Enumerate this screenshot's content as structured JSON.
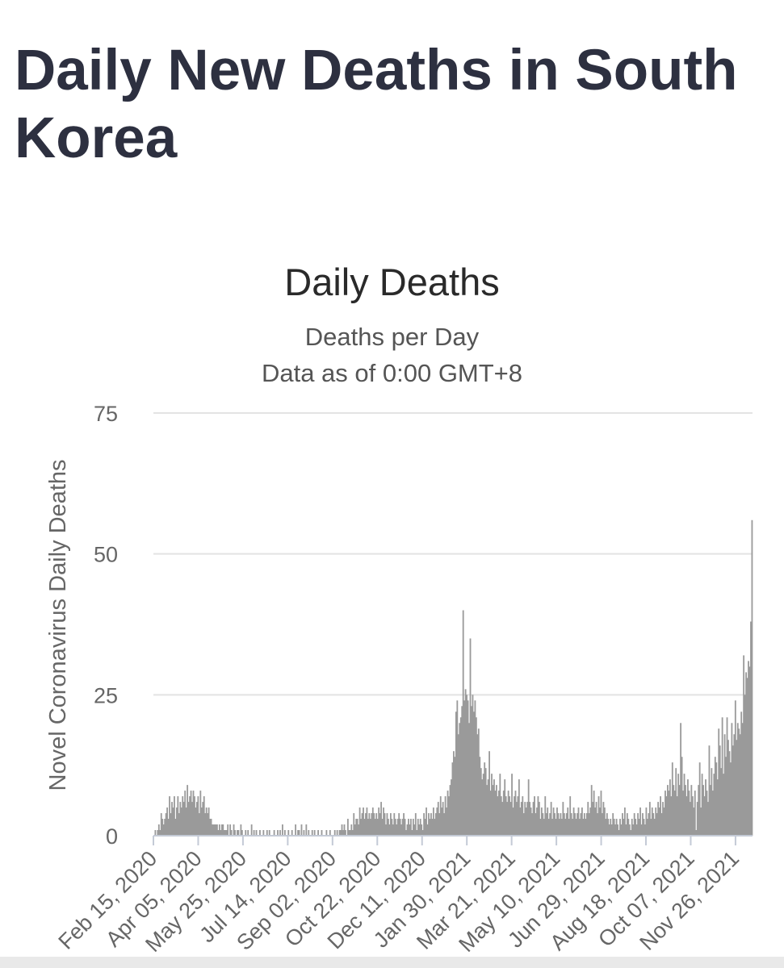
{
  "page": {
    "title": "Daily New Deaths in South Korea"
  },
  "chart_data": {
    "type": "bar",
    "title": "Daily Deaths",
    "subtitles": [
      "Deaths per Day",
      "Data as of 0:00 GMT+8"
    ],
    "ylabel": "Novel Coronavirus Daily Deaths",
    "xlabel": "",
    "ylim": [
      0,
      75
    ],
    "yticks": [
      0,
      25,
      50,
      75
    ],
    "x_range": [
      "2020-02-15",
      "2021-12-14"
    ],
    "xtick_dates": [
      "2020-02-15",
      "2020-04-05",
      "2020-05-25",
      "2020-07-14",
      "2020-09-02",
      "2020-10-22",
      "2020-12-11",
      "2021-01-30",
      "2021-03-21",
      "2021-05-10",
      "2021-06-29",
      "2021-08-18",
      "2021-10-07",
      "2021-11-26"
    ],
    "xtick_labels": [
      "Feb 15, 2020",
      "Apr 05, 2020",
      "May 25, 2020",
      "Jul 14, 2020",
      "Sep 02, 2020",
      "Oct 22, 2020",
      "Dec 11, 2020",
      "Jan 30, 2021",
      "Mar 21, 2021",
      "May 10, 2021",
      "Jun 29, 2021",
      "Aug 18, 2021",
      "Oct 07, 2021",
      "Nov 26, 2021"
    ],
    "grid": true,
    "bar_color": "#9a9a9a",
    "series": [
      {
        "values": [
          0,
          1,
          0,
          1,
          2,
          1,
          4,
          3,
          2,
          3,
          4,
          5,
          3,
          7,
          4,
          6,
          5,
          7,
          3,
          5,
          7,
          4,
          6,
          5,
          7,
          6,
          8,
          5,
          9,
          6,
          7,
          8,
          6,
          8,
          7,
          5,
          6,
          7,
          4,
          8,
          5,
          6,
          7,
          4,
          5,
          4,
          5,
          3,
          3,
          2,
          2,
          2,
          2,
          2,
          1,
          2,
          1,
          2,
          2,
          1,
          1,
          1,
          2,
          0,
          2,
          1,
          0,
          2,
          1,
          0,
          1,
          1,
          0,
          2,
          1,
          0,
          0,
          1,
          0,
          1,
          0,
          0,
          2,
          0,
          1,
          0,
          1,
          0,
          0,
          1,
          0,
          0,
          1,
          0,
          0,
          1,
          0,
          1,
          0,
          0,
          0,
          1,
          0,
          0,
          1,
          0,
          1,
          0,
          2,
          0,
          1,
          0,
          0,
          1,
          0,
          0,
          1,
          0,
          0,
          2,
          0,
          1,
          1,
          0,
          2,
          0,
          1,
          0,
          2,
          0,
          1,
          0,
          0,
          1,
          0,
          1,
          0,
          0,
          1,
          0,
          0,
          1,
          0,
          0,
          0,
          1,
          0,
          0,
          1,
          0,
          0,
          0,
          1,
          0,
          1,
          0,
          1,
          1,
          2,
          1,
          2,
          1,
          0,
          3,
          1,
          1,
          2,
          1,
          4,
          2,
          3,
          3,
          2,
          5,
          3,
          4,
          5,
          3,
          4,
          5,
          3,
          4,
          3,
          4,
          5,
          4,
          3,
          4,
          3,
          5,
          4,
          6,
          3,
          5,
          4,
          2,
          4,
          3,
          2,
          4,
          3,
          2,
          4,
          3,
          2,
          3,
          4,
          3,
          2,
          3,
          4,
          3,
          1,
          2,
          3,
          2,
          3,
          1,
          3,
          2,
          4,
          1,
          3,
          2,
          3,
          2,
          1,
          4,
          3,
          5,
          2,
          4,
          3,
          4,
          3,
          5,
          3,
          4,
          5,
          6,
          4,
          7,
          5,
          6,
          4,
          7,
          5,
          8,
          7,
          9,
          10,
          13,
          15,
          14,
          22,
          24,
          18,
          20,
          21,
          23,
          40,
          24,
          26,
          25,
          24,
          20,
          35,
          23,
          25,
          22,
          24,
          21,
          18,
          19,
          14,
          12,
          10,
          11,
          13,
          12,
          9,
          10,
          15,
          8,
          11,
          9,
          10,
          8,
          9,
          7,
          8,
          11,
          7,
          6,
          8,
          10,
          7,
          6,
          8,
          7,
          6,
          11,
          5,
          7,
          8,
          6,
          7,
          10,
          5,
          6,
          7,
          4,
          6,
          5,
          6,
          10,
          6,
          5,
          4,
          6,
          7,
          4,
          5,
          7,
          6,
          3,
          5,
          4,
          3,
          7,
          4,
          5,
          3,
          4,
          6,
          3,
          5,
          4,
          3,
          5,
          4,
          3,
          4,
          3,
          6,
          4,
          3,
          4,
          5,
          3,
          7,
          4,
          3,
          5,
          4,
          3,
          4,
          5,
          3,
          4,
          5,
          3,
          4,
          3,
          4,
          6,
          4,
          5,
          9,
          6,
          8,
          5,
          6,
          4,
          7,
          5,
          8,
          4,
          6,
          5,
          3,
          4,
          3,
          2,
          3,
          2,
          4,
          3,
          2,
          3,
          2,
          1,
          3,
          2,
          4,
          3,
          5,
          2,
          4,
          3,
          2,
          1,
          3,
          2,
          4,
          3,
          2,
          4,
          3,
          5,
          2,
          4,
          3,
          2,
          5,
          3,
          4,
          6,
          3,
          5,
          4,
          3,
          5,
          4,
          6,
          5,
          7,
          4,
          6,
          5,
          8,
          7,
          9,
          8,
          10,
          7,
          13,
          9,
          8,
          12,
          7,
          11,
          9,
          20,
          14,
          8,
          11,
          9,
          7,
          10,
          8,
          6,
          9,
          7,
          5,
          8,
          1,
          6,
          9,
          13,
          5,
          11,
          9,
          7,
          10,
          8,
          6,
          16,
          9,
          12,
          8,
          11,
          14,
          13,
          10,
          19,
          16,
          12,
          21,
          11,
          18,
          14,
          21,
          17,
          15,
          13,
          20,
          16,
          18,
          24,
          17,
          20,
          19,
          18,
          22,
          20,
          32,
          25,
          29,
          28,
          31,
          30,
          38,
          56
        ]
      }
    ]
  }
}
